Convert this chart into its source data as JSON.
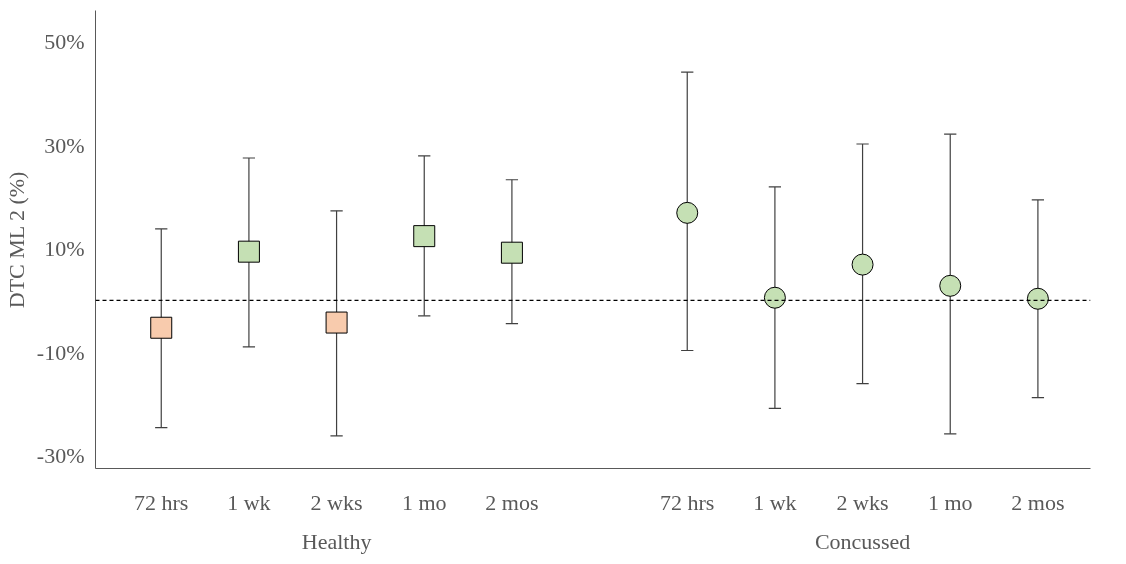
{
  "chart_data": {
    "type": "scatter",
    "ylabel": "DTC ML 2 (%)",
    "categories": [
      "72 hrs",
      "1 wk",
      "2 wks",
      "1 mo",
      "2 mos",
      "72 hrs",
      "1 wk",
      "2 wks",
      "1 mo",
      "2 mos"
    ],
    "series": [
      {
        "marker": "square",
        "colors": [
          "#f8cbad",
          "#c5e0b4",
          "#f8cbad",
          "#c5e0b4",
          "#c5e0b4",
          null,
          null,
          null,
          null,
          null
        ],
        "values": [
          -5.3,
          9.4,
          -4.3,
          12.4,
          9.2,
          null,
          null,
          null,
          null,
          null
        ],
        "errors": [
          [
            -24.6,
            13.8
          ],
          [
            -9.0,
            27.5
          ],
          [
            -26.2,
            17.3
          ],
          [
            -3.0,
            27.9
          ],
          [
            -4.5,
            23.3
          ],
          null,
          null,
          null,
          null,
          null
        ]
      },
      {
        "marker": "circle",
        "colors": [
          null,
          null,
          null,
          null,
          null,
          "#c5e0b4",
          "#c5e0b4",
          "#c5e0b4",
          "#c5e0b4",
          "#c5e0b4"
        ],
        "values": [
          null,
          null,
          null,
          null,
          null,
          16.9,
          0.5,
          6.9,
          2.8,
          0.3
        ],
        "errors": [
          null,
          null,
          null,
          null,
          null,
          [
            -9.7,
            44.1
          ],
          [
            -20.9,
            21.9
          ],
          [
            -16.1,
            30.2
          ],
          [
            -25.8,
            32.1
          ],
          [
            -18.8,
            19.4
          ]
        ]
      }
    ],
    "annotations": [
      "Healthy",
      "Concussed"
    ],
    "ref_lines": [
      {
        "axis": "y",
        "value": 0,
        "label": null,
        "line_style": "dashed",
        "color": "#000000"
      }
    ],
    "ylim": [
      -32.5,
      56
    ],
    "yticks": [
      {
        "value": -30,
        "label": "-30%"
      },
      {
        "value": -10,
        "label": "-10%"
      },
      {
        "value": 10,
        "label": "10%"
      },
      {
        "value": 30,
        "label": "30%"
      },
      {
        "value": 50,
        "label": "50%"
      }
    ],
    "grid": false
  }
}
